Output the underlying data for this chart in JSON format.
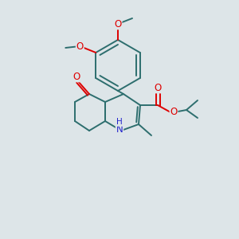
{
  "background_color": "#dde5e8",
  "bond_color": "#2d6e6e",
  "atom_colors": {
    "O": "#dd0000",
    "N": "#2222cc",
    "C": "#2d6e6e"
  },
  "figsize": [
    3.0,
    3.0
  ],
  "dpi": 100,
  "lw": 1.4
}
